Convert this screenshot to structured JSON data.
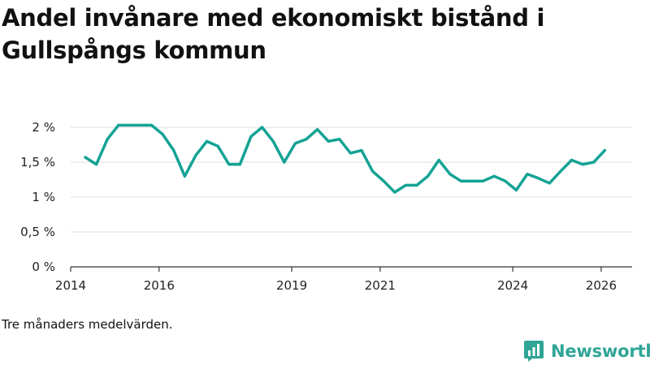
{
  "title": "Andel invånare med ekonomiskt bistånd i Gullspångs kommun",
  "footnote": "Tre månaders medelvärden.",
  "brand": {
    "name": "Newsworthy",
    "icon": "newsworthy-logo-icon",
    "color": "#2fa596"
  },
  "colors": {
    "line": "#14a395",
    "grid": "#dddddd",
    "axis": "#333333"
  },
  "chart_data": {
    "type": "line",
    "title": "Andel invånare med ekonomiskt bistånd i Gullspångs kommun",
    "xlabel": "",
    "ylabel": "",
    "xlim": [
      2014.0,
      2026.7
    ],
    "ylim": [
      0,
      2
    ],
    "x_ticks": [
      2014,
      2016,
      2019,
      2021,
      2024,
      2026
    ],
    "x_tick_labels": [
      "2014",
      "2016",
      "2019",
      "2021",
      "2024",
      "2026"
    ],
    "y_ticks": [
      0,
      0.5,
      1,
      1.5,
      2
    ],
    "y_tick_labels": [
      "0 %",
      "0,5 %",
      "1 %",
      "1,5 %",
      "2 %"
    ],
    "grid": true,
    "series": [
      {
        "name": "Andel invånare med ekonomiskt bistånd",
        "x": [
          2014.33,
          2014.58,
          2014.83,
          2015.08,
          2015.33,
          2015.58,
          2015.83,
          2016.08,
          2016.33,
          2016.58,
          2016.83,
          2017.08,
          2017.33,
          2017.58,
          2017.83,
          2018.08,
          2018.33,
          2018.58,
          2018.83,
          2019.08,
          2019.33,
          2019.58,
          2019.83,
          2020.08,
          2020.33,
          2020.58,
          2020.83,
          2021.08,
          2021.33,
          2021.58,
          2021.83,
          2022.08,
          2022.33,
          2022.58,
          2022.83,
          2023.08,
          2023.33,
          2023.58,
          2023.83,
          2024.08,
          2024.33,
          2024.58,
          2024.83,
          2025.08,
          2025.33,
          2025.58,
          2025.83,
          2026.08
        ],
        "values": [
          1.57,
          1.47,
          1.83,
          2.03,
          2.03,
          2.03,
          2.03,
          1.9,
          1.67,
          1.3,
          1.6,
          1.8,
          1.73,
          1.47,
          1.47,
          1.87,
          2.0,
          1.8,
          1.5,
          1.77,
          1.83,
          1.97,
          1.8,
          1.83,
          1.63,
          1.67,
          1.37,
          1.23,
          1.07,
          1.17,
          1.17,
          1.3,
          1.53,
          1.33,
          1.23,
          1.23,
          1.23,
          1.3,
          1.23,
          1.1,
          1.33,
          1.27,
          1.2,
          1.37,
          1.53,
          1.47,
          1.5,
          1.67
        ]
      }
    ]
  }
}
